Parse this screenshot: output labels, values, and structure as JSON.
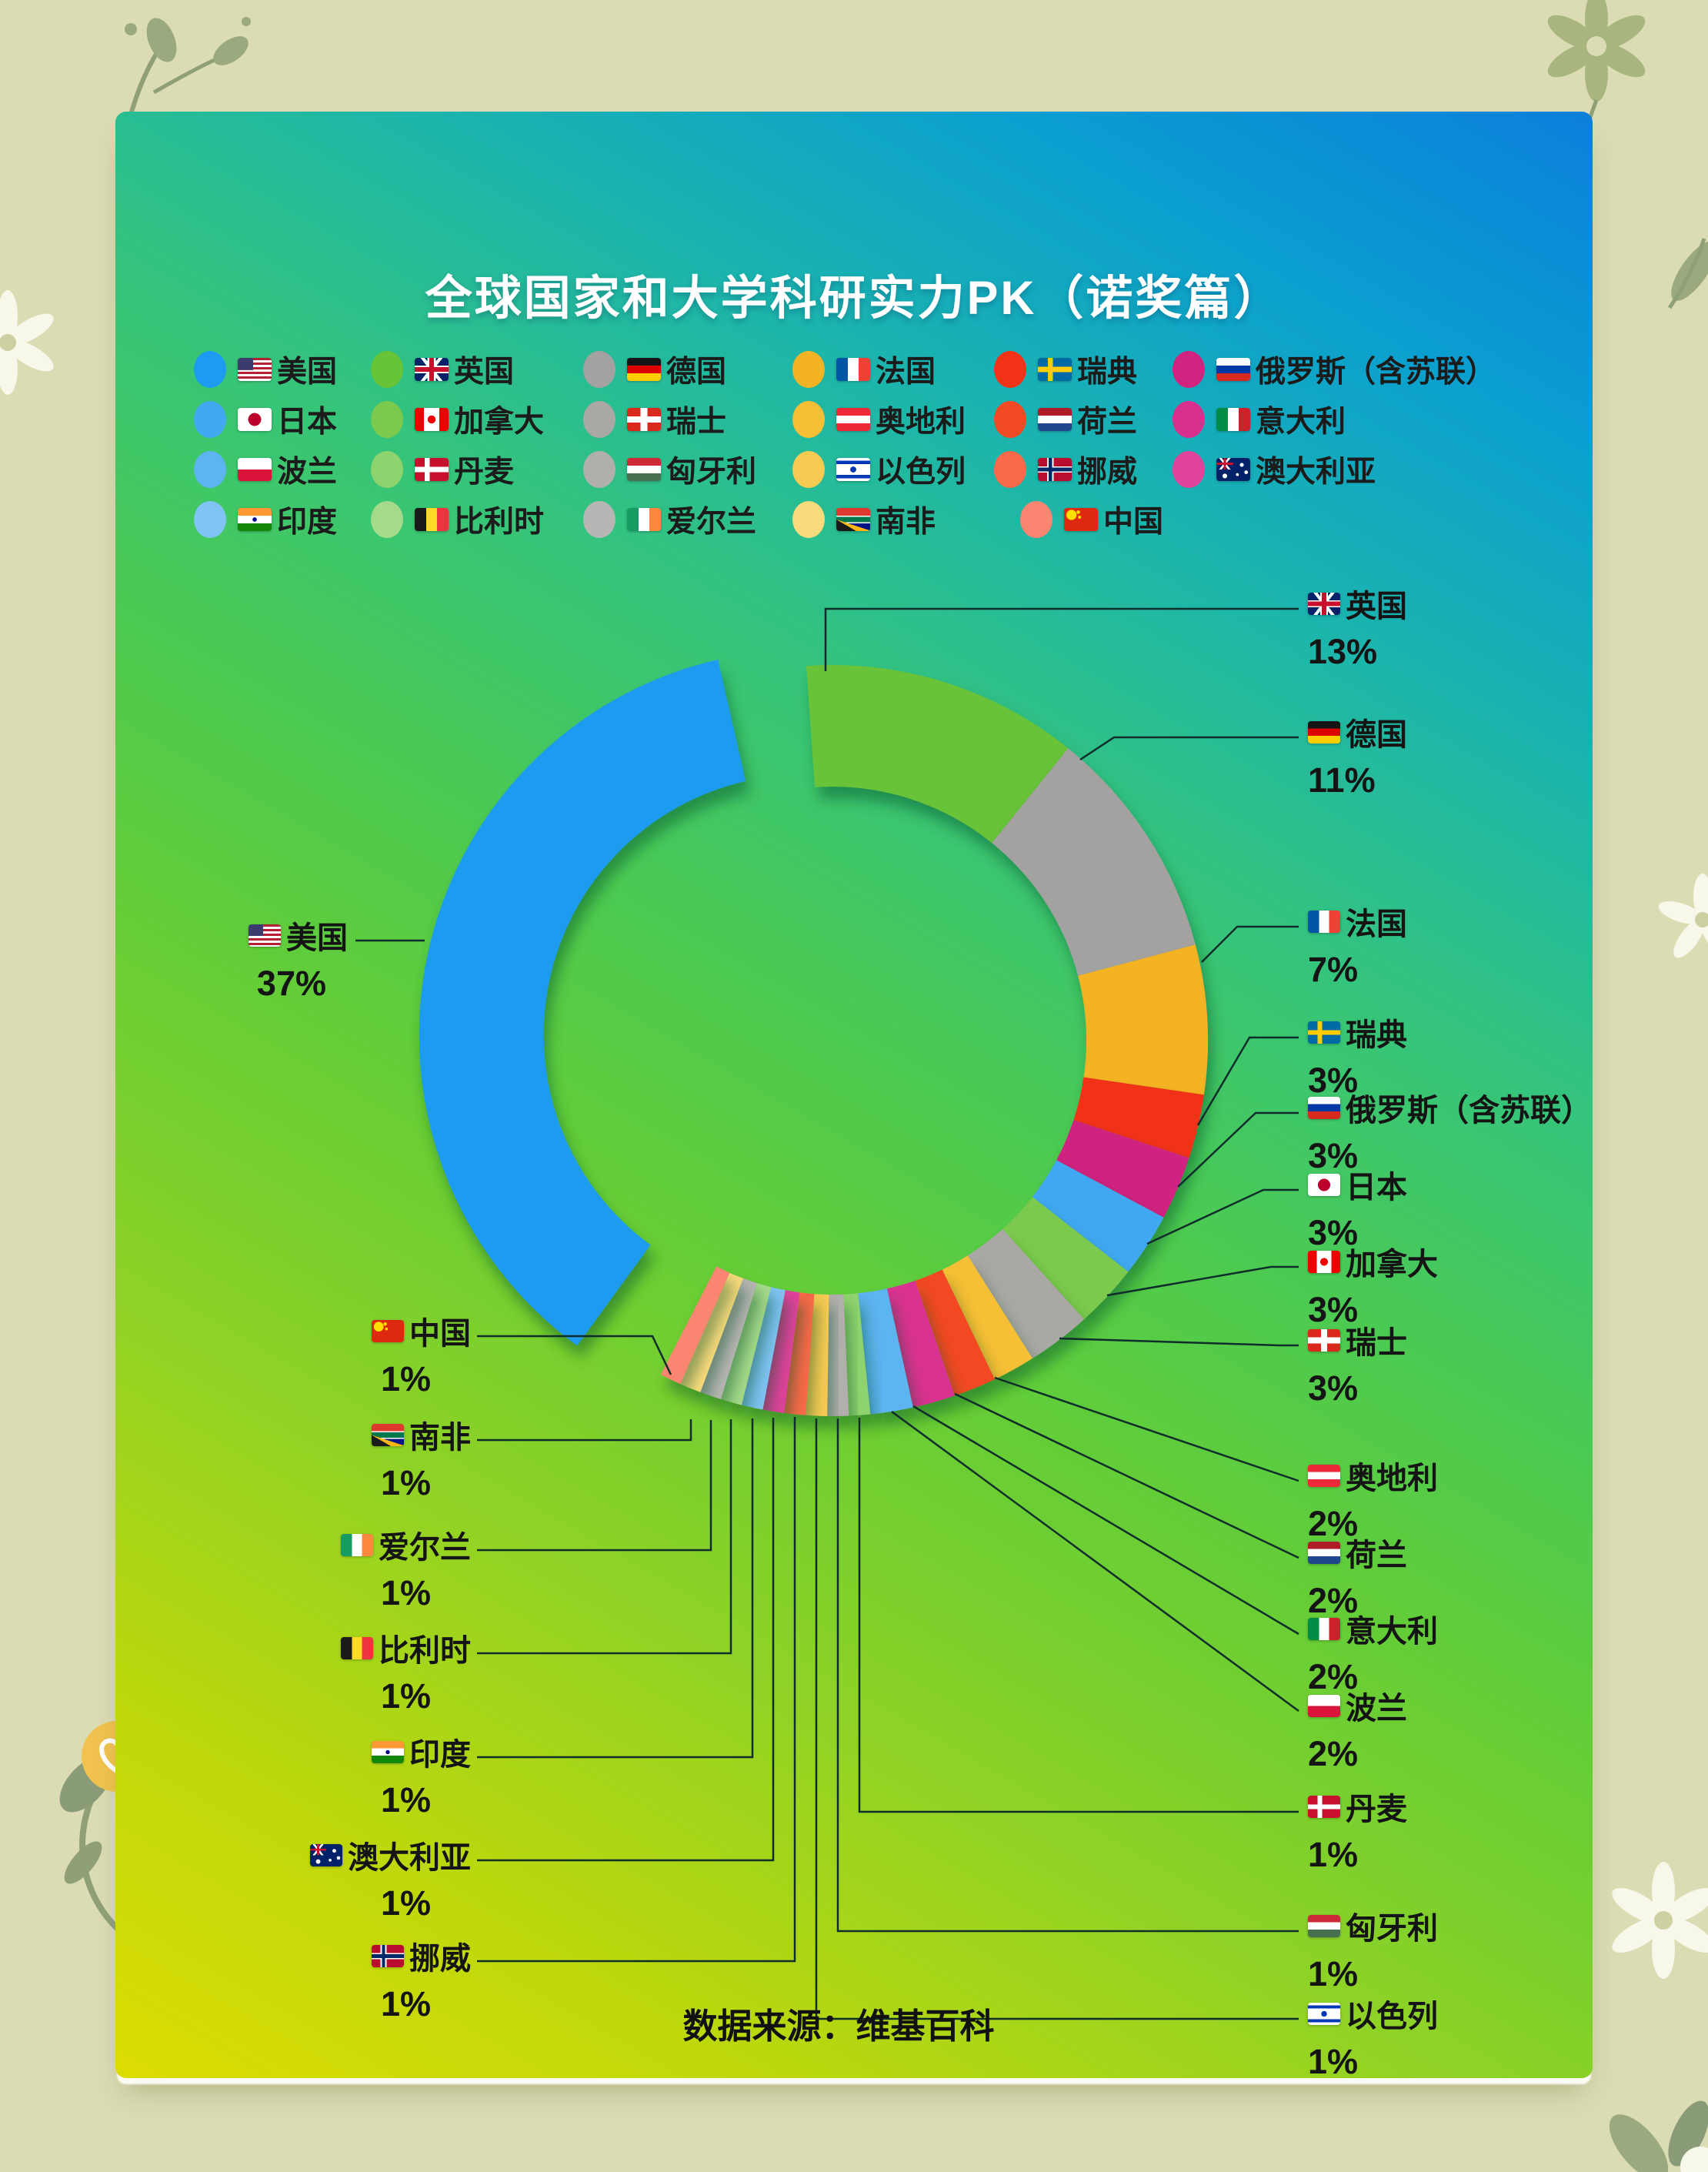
{
  "card": {
    "title": "全球国家和大学科研实力PK（诺奖篇）",
    "source_note": "数据来源：维基百科",
    "page_background": "#dbdbb4",
    "card_gradient": [
      "#0b7fdb",
      "#1cb5ac",
      "#4cca51",
      "#bcd80d",
      "#dcdc02"
    ]
  },
  "chart_data": {
    "type": "pie",
    "subtype": "donut-exploded",
    "title": "全球国家和大学科研实力PK（诺奖篇）",
    "unit": "%",
    "direction": "clockwise-from-top",
    "exploded_segment": "美国",
    "legend_position": "top",
    "segments": [
      {
        "id": "uk",
        "name": "英国",
        "value": 13,
        "color": "#67c337"
      },
      {
        "id": "de",
        "name": "德国",
        "value": 11,
        "color": "#a3a2a0"
      },
      {
        "id": "fr",
        "name": "法国",
        "value": 7,
        "color": "#f4b324"
      },
      {
        "id": "se",
        "name": "瑞典",
        "value": 3,
        "color": "#f23317"
      },
      {
        "id": "ru",
        "name": "俄罗斯（含苏联）",
        "value": 3,
        "color": "#d02480"
      },
      {
        "id": "jp",
        "name": "日本",
        "value": 3,
        "color": "#41a8f2"
      },
      {
        "id": "ca",
        "name": "加拿大",
        "value": 3,
        "color": "#7bca4d"
      },
      {
        "id": "ch",
        "name": "瑞士",
        "value": 3,
        "color": "#a9a8a5"
      },
      {
        "id": "at",
        "name": "奥地利",
        "value": 2,
        "color": "#f6bf35"
      },
      {
        "id": "nl",
        "name": "荷兰",
        "value": 2,
        "color": "#f24a22"
      },
      {
        "id": "it",
        "name": "意大利",
        "value": 2,
        "color": "#d93090"
      },
      {
        "id": "pl",
        "name": "波兰",
        "value": 2,
        "color": "#5cb4f1"
      },
      {
        "id": "dk",
        "name": "丹麦",
        "value": 1,
        "color": "#8fd36e"
      },
      {
        "id": "hu",
        "name": "匈牙利",
        "value": 1,
        "color": "#b0afac"
      },
      {
        "id": "il",
        "name": "以色列",
        "value": 1,
        "color": "#f7ca52"
      },
      {
        "id": "no",
        "name": "挪威",
        "value": 1,
        "color": "#f9694a"
      },
      {
        "id": "au",
        "name": "澳大利亚",
        "value": 1,
        "color": "#e0439c"
      },
      {
        "id": "in",
        "name": "印度",
        "value": 1,
        "color": "#7fc4f5"
      },
      {
        "id": "be",
        "name": "比利时",
        "value": 1,
        "color": "#a5da8b"
      },
      {
        "id": "ie",
        "name": "爱尔兰",
        "value": 1,
        "color": "#b8b6b4"
      },
      {
        "id": "za",
        "name": "南非",
        "value": 1,
        "color": "#f9da7d"
      },
      {
        "id": "cn",
        "name": "中国",
        "value": 1,
        "color": "#fa8570"
      },
      {
        "id": "us",
        "name": "美国",
        "value": 37,
        "color": "#1d9bf0",
        "exploded": true
      }
    ],
    "legend_rows": [
      [
        "us",
        "uk",
        "de",
        "fr",
        "se",
        "ru"
      ],
      [
        "jp",
        "ca",
        "ch",
        "at",
        "nl",
        "it"
      ],
      [
        "pl",
        "dk",
        "hu",
        "il",
        "no",
        "au"
      ],
      [
        "in",
        "be",
        "ie",
        "za",
        "cn"
      ]
    ]
  }
}
